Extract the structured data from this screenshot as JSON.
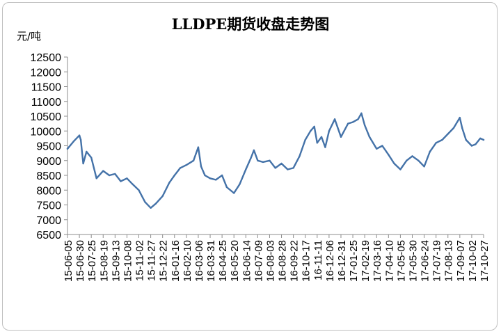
{
  "chart_data": {
    "type": "line",
    "title": "LLDPE期货收盘走势图",
    "ylabel": "元/吨",
    "xlabel": "",
    "ylim": [
      6500,
      12500
    ],
    "yticks": [
      6500,
      7000,
      7500,
      8000,
      8500,
      9000,
      9500,
      10000,
      10500,
      11000,
      11500,
      12000,
      12500
    ],
    "categories": [
      "15-06-05",
      "15-06-30",
      "15-07-25",
      "15-08-19",
      "15-09-13",
      "15-10-08",
      "15-11-02",
      "15-11-27",
      "15-12-22",
      "16-01-16",
      "16-02-10",
      "16-03-06",
      "16-03-31",
      "16-04-25",
      "16-05-20",
      "16-06-14",
      "16-07-09",
      "16-08-03",
      "16-08-28",
      "16-09-22",
      "16-10-17",
      "16-11-11",
      "16-12-06",
      "16-12-31",
      "17-01-25",
      "17-02-19",
      "17-03-16",
      "17-04-10",
      "17-05-05",
      "17-05-30",
      "17-06-24",
      "17-07-19",
      "17-08-13",
      "17-09-07",
      "17-10-02",
      "17-10-27"
    ],
    "series": [
      {
        "color": "#4472a8",
        "x": [
          "15-06-05",
          "15-06-18",
          "15-06-30",
          "15-07-03",
          "15-07-08",
          "15-07-15",
          "15-07-25",
          "15-08-05",
          "15-08-19",
          "15-09-01",
          "15-09-13",
          "15-09-25",
          "15-10-08",
          "15-10-20",
          "15-11-02",
          "15-11-15",
          "15-11-27",
          "15-12-08",
          "15-12-22",
          "16-01-05",
          "16-01-16",
          "16-01-28",
          "16-02-10",
          "16-02-25",
          "16-03-06",
          "16-03-12",
          "16-03-20",
          "16-03-31",
          "16-04-12",
          "16-04-25",
          "16-05-05",
          "16-05-20",
          "16-06-01",
          "16-06-14",
          "16-06-25",
          "16-07-01",
          "16-07-09",
          "16-07-20",
          "16-08-03",
          "16-08-15",
          "16-08-28",
          "16-09-10",
          "16-09-22",
          "16-10-05",
          "16-10-17",
          "16-10-28",
          "16-11-05",
          "16-11-11",
          "16-11-20",
          "16-11-28",
          "16-12-06",
          "16-12-18",
          "16-12-31",
          "17-01-15",
          "17-01-25",
          "17-02-05",
          "17-02-12",
          "17-02-19",
          "17-03-01",
          "17-03-16",
          "17-03-28",
          "17-04-10",
          "17-04-22",
          "17-05-05",
          "17-05-18",
          "17-05-30",
          "17-06-12",
          "17-06-24",
          "17-07-06",
          "17-07-19",
          "17-08-01",
          "17-08-13",
          "17-08-25",
          "17-09-07",
          "17-09-12",
          "17-09-20",
          "17-10-02",
          "17-10-10",
          "17-10-20",
          "17-10-27"
        ],
        "values": [
          9400,
          9650,
          9850,
          9700,
          8900,
          9300,
          9100,
          8400,
          8650,
          8500,
          8550,
          8300,
          8400,
          8200,
          8000,
          7600,
          7400,
          7550,
          7800,
          8250,
          8500,
          8750,
          8850,
          9000,
          9450,
          8800,
          8500,
          8400,
          8350,
          8500,
          8100,
          7900,
          8200,
          8700,
          9100,
          9350,
          9000,
          8950,
          9000,
          8750,
          8900,
          8700,
          8750,
          9150,
          9700,
          10000,
          10150,
          9600,
          9800,
          9450,
          10000,
          10400,
          9800,
          10250,
          10300,
          10400,
          10600,
          10200,
          9800,
          9400,
          9500,
          9200,
          8900,
          8700,
          9000,
          9150,
          9000,
          8800,
          9300,
          9600,
          9700,
          9900,
          10100,
          10450,
          10100,
          9700,
          9500,
          9550,
          9750,
          9700
        ]
      }
    ]
  }
}
